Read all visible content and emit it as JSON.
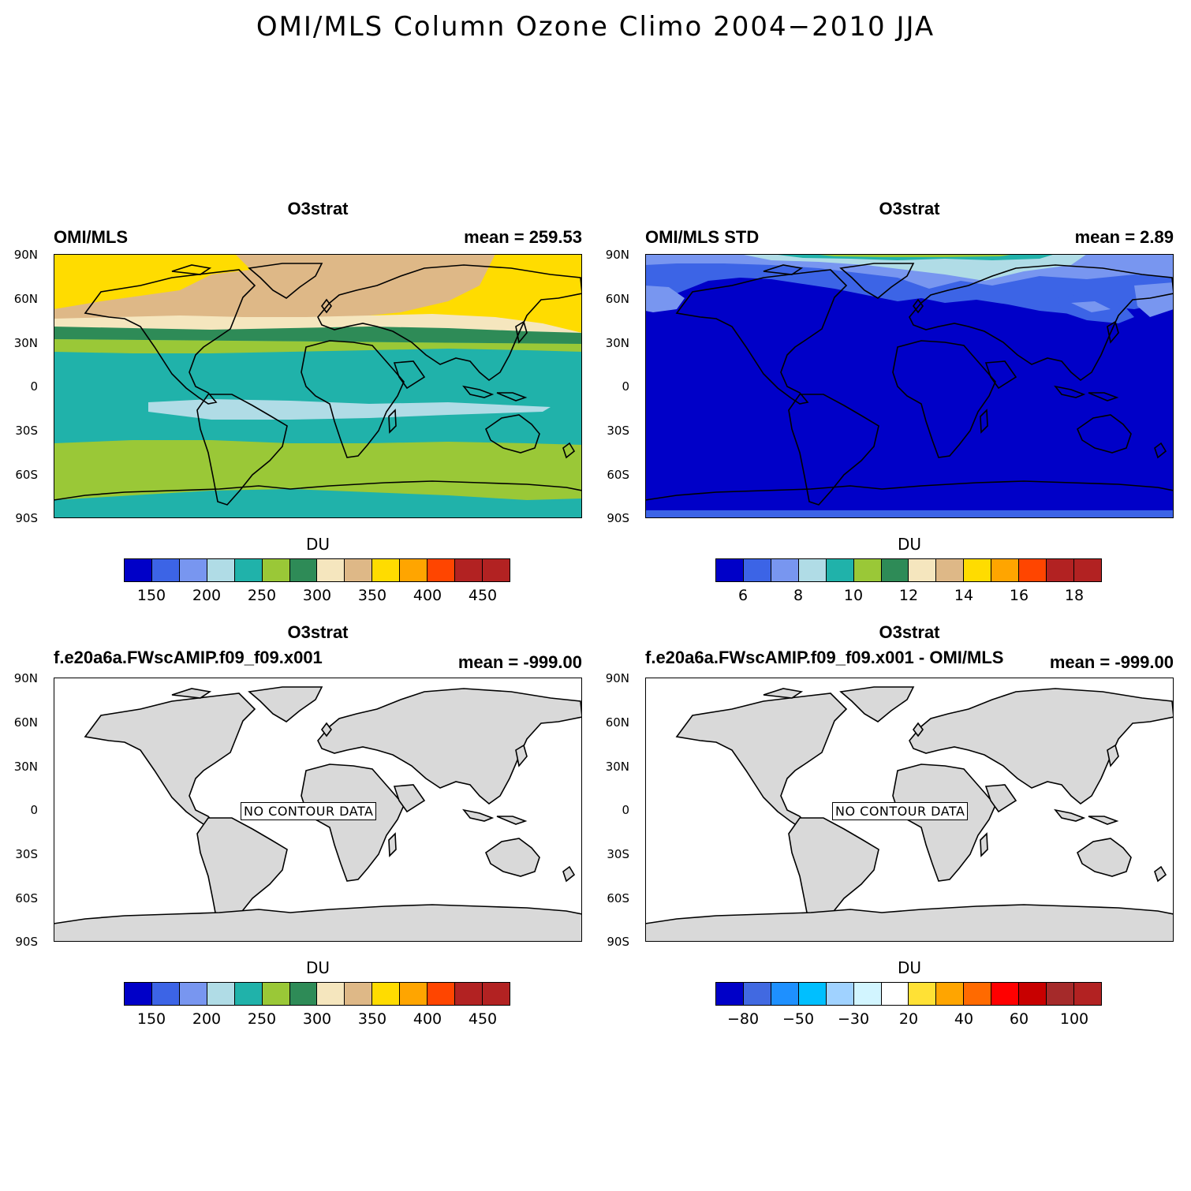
{
  "title": "OMI/MLS Column Ozone Climo 2004−2010 JJA",
  "lat_labels": [
    "90N",
    "60N",
    "30N",
    "0",
    "30S",
    "60S",
    "90S"
  ],
  "panels": [
    {
      "variable": "O3strat",
      "left_label": "OMI/MLS",
      "right_label": "mean = 259.53",
      "units": "DU",
      "ticks": [
        "150",
        "200",
        "250",
        "300",
        "350",
        "400",
        "450"
      ],
      "colors": [
        "#0000c8",
        "#3c64e6",
        "#7896f0",
        "#b0dce6",
        "#20b2aa",
        "#9ac837",
        "#2e8b57",
        "#f5e6be",
        "#deb887",
        "#ffdc00",
        "#ffa500",
        "#ff4500",
        "#b22222",
        "#b22222"
      ],
      "nodata": ""
    },
    {
      "variable": "O3strat",
      "left_label": "OMI/MLS STD",
      "right_label": "mean =   2.89",
      "units": "DU",
      "ticks": [
        "6",
        "8",
        "10",
        "12",
        "14",
        "16",
        "18"
      ],
      "colors": [
        "#0000c8",
        "#3c64e6",
        "#7896f0",
        "#b0dce6",
        "#20b2aa",
        "#9ac837",
        "#2e8b57",
        "#f5e6be",
        "#deb887",
        "#ffdc00",
        "#ffa500",
        "#ff4500",
        "#b22222",
        "#b22222"
      ],
      "nodata": ""
    },
    {
      "variable": "O3strat",
      "left_label": "f.e20a6a.FWscAMIP.f09_f09.x001",
      "right_label": "mean = -999.00",
      "units": "DU",
      "ticks": [
        "150",
        "200",
        "250",
        "300",
        "350",
        "400",
        "450"
      ],
      "colors": [
        "#0000c8",
        "#3c64e6",
        "#7896f0",
        "#b0dce6",
        "#20b2aa",
        "#9ac837",
        "#2e8b57",
        "#f5e6be",
        "#deb887",
        "#ffdc00",
        "#ffa500",
        "#ff4500",
        "#b22222",
        "#b22222"
      ],
      "nodata": "NO CONTOUR DATA"
    },
    {
      "variable": "O3strat",
      "left_label": "f.e20a6a.FWscAMIP.f09_f09.x001 - OMI/MLS",
      "right_label": "mean = -999.00",
      "units": "DU",
      "ticks": [
        "−80",
        "−50",
        "−30",
        "20",
        "40",
        "60",
        "100"
      ],
      "colors": [
        "#0000c8",
        "#4169e1",
        "#1e90ff",
        "#00bfff",
        "#a0d2ff",
        "#d2f5ff",
        "#ffffff",
        "#ffe135",
        "#ffa500",
        "#ff6a00",
        "#ff0000",
        "#c80000",
        "#a52a2a",
        "#b22222"
      ],
      "nodata": "NO CONTOUR DATA"
    }
  ]
}
